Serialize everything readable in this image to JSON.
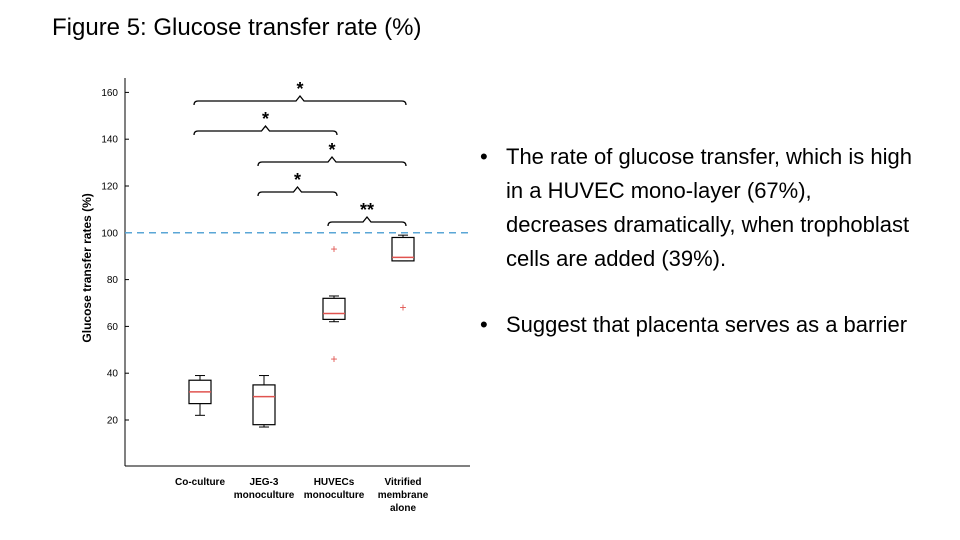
{
  "title": "Figure 5: Glucose transfer rate (%)",
  "bullets": [
    "The rate of glucose transfer, which is high in a HUVEC mono-layer (67%), decreases dramatically, when trophoblast cells are added (39%).",
    "Suggest that placenta serves as a barrier"
  ],
  "bullet_glyph": "•",
  "colors": {
    "median": "#e0534f",
    "outlier": "#e0534f",
    "reference_line": "#5aa6d6",
    "box": "#000000"
  },
  "chart_data": {
    "type": "box",
    "ylabel": "Glucose transfer rates (%)",
    "xlabel": "",
    "ylim": [
      10,
      160
    ],
    "yticks": [
      20,
      40,
      60,
      80,
      100,
      120,
      140,
      160
    ],
    "reference_line": 100,
    "categories": [
      [
        "Co-culture"
      ],
      [
        "JEG-3",
        "monoculture"
      ],
      [
        "HUVECs",
        "monoculture"
      ],
      [
        "Vitrified",
        "membrane",
        "alone"
      ]
    ],
    "boxes": [
      {
        "whisker_low": 22,
        "q1": 27,
        "median": 32,
        "q3": 37,
        "whisker_high": 39,
        "outliers": []
      },
      {
        "whisker_low": 17,
        "q1": 18,
        "median": 30,
        "q3": 35,
        "whisker_high": 39,
        "outliers": []
      },
      {
        "whisker_low": 62,
        "q1": 63,
        "median": 65.5,
        "q3": 72,
        "whisker_high": 73,
        "outliers": [
          93,
          46
        ]
      },
      {
        "whisker_low": 88,
        "q1": 88,
        "median": 89.5,
        "q3": 98,
        "whisker_high": 99,
        "outliers": [
          68
        ]
      }
    ],
    "significance": [
      {
        "from": 0,
        "to": 3,
        "label": "*"
      },
      {
        "from": 0,
        "to": 2,
        "label": "*"
      },
      {
        "from": 1,
        "to": 3,
        "label": "*"
      },
      {
        "from": 1,
        "to": 2,
        "label": "*"
      },
      {
        "from": 2,
        "to": 3,
        "label": "**"
      }
    ]
  }
}
